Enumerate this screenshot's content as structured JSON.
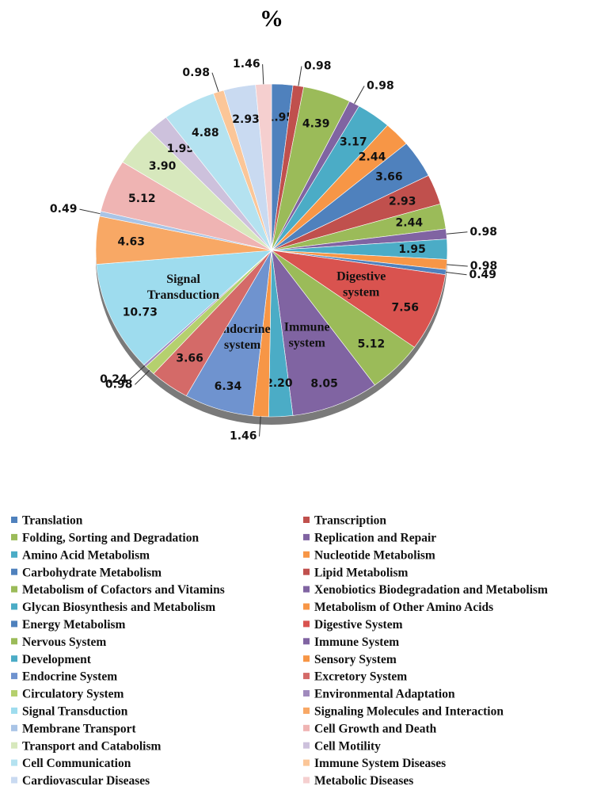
{
  "chart_data": {
    "type": "pie",
    "title": "%",
    "categories": [
      "Translation",
      "Transcription",
      "Folding, Sorting and Degradation",
      "Replication and Repair",
      "Amino Acid Metabolism",
      "Nucleotide Metabolism",
      "Carbohydrate Metabolism",
      "Lipid Metabolism",
      "Metabolism of Cofactors and Vitamins",
      "Xenobiotics Biodegradation and Metabolism",
      "Glycan Biosynthesis and Metabolism",
      "Metabolism of Other Amino Acids",
      "Energy Metabolism",
      "Digestive System",
      "Nervous System",
      "Immune System",
      "Development",
      "Sensory System",
      "Endocrine System",
      "Excretory System",
      "Circulatory System",
      "Environmental Adaptation",
      "Signal Transduction",
      "Signaling Molecules and Interaction",
      "Membrane Transport",
      "Cell Growth and Death",
      "Transport and Catabolism",
      "Cell Motility",
      "Cell Communication",
      "Immune System Diseases",
      "Cardiovascular Diseases",
      "Metabolic Diseases"
    ],
    "values": [
      1.95,
      0.98,
      4.39,
      0.98,
      3.17,
      2.44,
      3.66,
      2.93,
      2.44,
      0.98,
      1.95,
      0.98,
      0.49,
      7.56,
      5.12,
      8.05,
      2.2,
      1.46,
      6.34,
      3.66,
      0.98,
      0.24,
      10.73,
      4.63,
      0.49,
      5.12,
      3.9,
      1.95,
      4.88,
      0.98,
      2.93,
      1.46
    ],
    "value_labels": [
      "1.95",
      "0.98",
      "4.39",
      "0.98",
      "3.17",
      "2.44",
      "3.66",
      "2.93",
      "2.44",
      "0.98",
      "1.95",
      "0.98",
      "0.49",
      "7.56",
      "5.12",
      "8.05",
      "2.20",
      "1.46",
      "6.34",
      "3.66",
      "0.98",
      "0.24",
      "10.73",
      "4.63",
      "0.49",
      "5.12",
      "3.90",
      "1.95",
      "4.88",
      "0.98",
      "2.93",
      "1.46"
    ],
    "slice_labels": [
      null,
      null,
      null,
      null,
      null,
      null,
      null,
      null,
      null,
      null,
      null,
      null,
      null,
      [
        "Digestive",
        "system"
      ],
      null,
      [
        "Immune",
        "system"
      ],
      null,
      null,
      [
        "Endocrine",
        "system"
      ],
      null,
      null,
      null,
      [
        "Signal",
        "Transduction"
      ],
      null,
      null,
      null,
      null,
      null,
      null,
      null,
      null,
      null
    ],
    "colors": [
      "#4f81bd",
      "#c0504d",
      "#9bbb59",
      "#8064a2",
      "#4bacc6",
      "#f79646",
      "#4f81bd",
      "#c0504d",
      "#9bbb59",
      "#8064a2",
      "#4bacc6",
      "#f79646",
      "#4f81bd",
      "#d9534f",
      "#9bbb59",
      "#8064a2",
      "#4bacc6",
      "#f79646",
      "#6f93cf",
      "#d46a68",
      "#b5d06e",
      "#a08abd",
      "#9edcee",
      "#f8a865",
      "#a9c4e6",
      "#efb4b3",
      "#d7e8bd",
      "#cdc1dc",
      "#b4e2f0",
      "#fbc698",
      "#c9daf1",
      "#f5cfcf"
    ],
    "legend": "bottom"
  }
}
